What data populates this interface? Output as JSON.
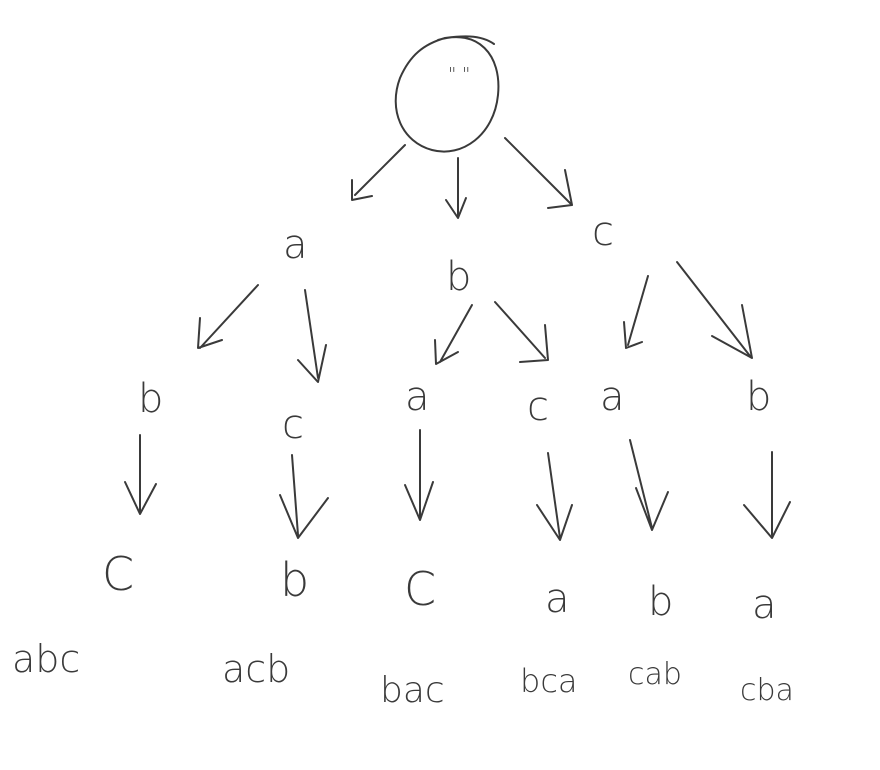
{
  "tree": {
    "root": {
      "label": "\" \""
    },
    "level1": [
      {
        "id": "a",
        "label": "a"
      },
      {
        "id": "b",
        "label": "b"
      },
      {
        "id": "c",
        "label": "c"
      }
    ],
    "level2": [
      {
        "id": "ab",
        "label": "b"
      },
      {
        "id": "ac",
        "label": "c"
      },
      {
        "id": "ba",
        "label": "a"
      },
      {
        "id": "bc",
        "label": "c"
      },
      {
        "id": "ca",
        "label": "a"
      },
      {
        "id": "cb",
        "label": "b"
      }
    ],
    "level3": [
      {
        "id": "abc",
        "label": "C"
      },
      {
        "id": "acb",
        "label": "b"
      },
      {
        "id": "bac",
        "label": "C"
      },
      {
        "id": "bca",
        "label": "a"
      },
      {
        "id": "cab",
        "label": "b"
      },
      {
        "id": "cba",
        "label": "a"
      }
    ],
    "results": [
      "abc",
      "acb",
      "bac",
      "bca",
      "cab",
      "cba"
    ]
  }
}
